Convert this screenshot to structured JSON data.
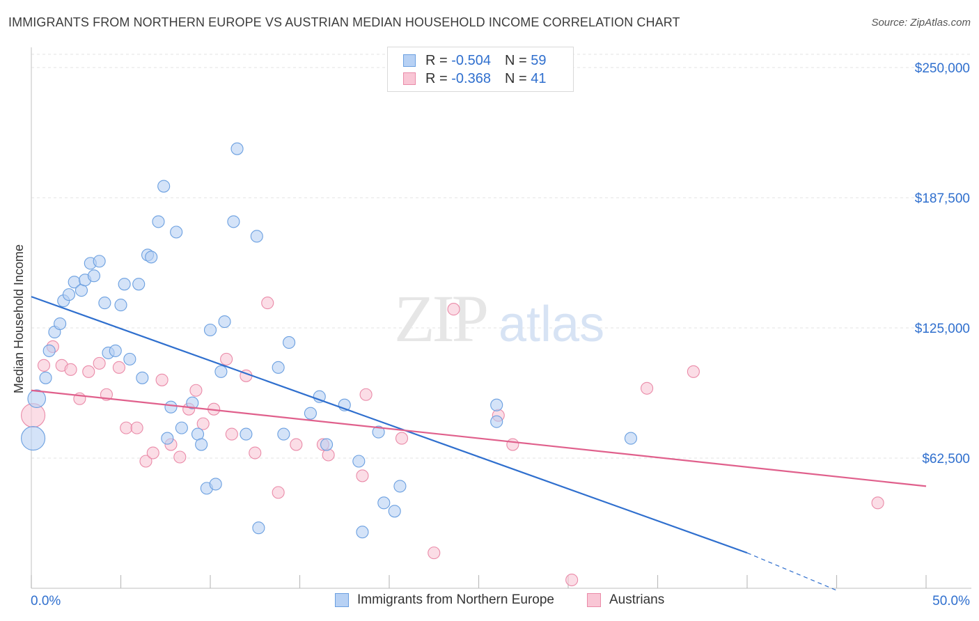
{
  "title": "IMMIGRANTS FROM NORTHERN EUROPE VS AUSTRIAN MEDIAN HOUSEHOLD INCOME CORRELATION CHART",
  "source": "Source: ZipAtlas.com",
  "watermark": {
    "zip": "ZIP",
    "atlas": "atlas"
  },
  "legend_top": [
    {
      "r_label": "R =",
      "r_value": "-0.504",
      "n_label": "N =",
      "n_value": "59",
      "fill": "#b7d1f4",
      "stroke": "#6a9fe0"
    },
    {
      "r_label": "R =",
      "r_value": "-0.368",
      "n_label": "N =",
      "n_value": "41",
      "fill": "#f9c6d5",
      "stroke": "#ea8aa8"
    }
  ],
  "legend_bottom": [
    {
      "label": "Immigrants from Northern Europe",
      "fill": "#b7d1f4",
      "stroke": "#6a9fe0"
    },
    {
      "label": "Austrians",
      "fill": "#f9c6d5",
      "stroke": "#ea8aa8"
    }
  ],
  "chart_data": {
    "type": "scatter",
    "title": "IMMIGRANTS FROM NORTHERN EUROPE VS AUSTRIAN MEDIAN HOUSEHOLD INCOME CORRELATION CHART",
    "xlabel": "",
    "ylabel": "Median Household Income",
    "xlim": [
      0,
      50
    ],
    "ylim": [
      0,
      250000
    ],
    "x_tick_labels": [
      "0.0%",
      "50.0%"
    ],
    "y_ticks": [
      62500,
      125000,
      187500,
      250000
    ],
    "y_tick_labels": [
      "$62,500",
      "$125,000",
      "$187,500",
      "$250,000"
    ],
    "grid": true,
    "legend_position": "top-center",
    "colors": {
      "blue": "#2f6fce",
      "pink": "#e0608c"
    },
    "series": [
      {
        "name": "Immigrants from Northern Europe",
        "color": "#6a9fe0",
        "fill": "#b7d1f4",
        "points": [
          [
            0.1,
            72000,
            2
          ],
          [
            0.3,
            91000,
            1.5
          ],
          [
            0.8,
            101000,
            1
          ],
          [
            1.0,
            114000,
            1
          ],
          [
            1.3,
            123000,
            1
          ],
          [
            1.6,
            127000,
            1
          ],
          [
            1.8,
            138000,
            1
          ],
          [
            2.1,
            141000,
            1
          ],
          [
            2.4,
            147000,
            1
          ],
          [
            2.8,
            143000,
            1
          ],
          [
            3.0,
            148000,
            1
          ],
          [
            3.3,
            156000,
            1
          ],
          [
            3.5,
            150000,
            1
          ],
          [
            3.8,
            157000,
            1
          ],
          [
            4.1,
            137000,
            1
          ],
          [
            4.3,
            113000,
            1
          ],
          [
            4.7,
            114000,
            1
          ],
          [
            5.0,
            136000,
            1
          ],
          [
            5.2,
            146000,
            1
          ],
          [
            5.5,
            110000,
            1
          ],
          [
            6.0,
            146000,
            1
          ],
          [
            6.2,
            101000,
            1
          ],
          [
            6.5,
            160000,
            1
          ],
          [
            6.7,
            159000,
            1
          ],
          [
            7.1,
            176000,
            1
          ],
          [
            7.4,
            193000,
            1
          ],
          [
            7.6,
            72000,
            1
          ],
          [
            7.8,
            87000,
            1
          ],
          [
            8.1,
            171000,
            1
          ],
          [
            8.4,
            77000,
            1
          ],
          [
            9.0,
            89000,
            1
          ],
          [
            9.3,
            74000,
            1
          ],
          [
            9.5,
            69000,
            1
          ],
          [
            9.8,
            48000,
            1
          ],
          [
            10.3,
            50000,
            1
          ],
          [
            10.0,
            124000,
            1
          ],
          [
            10.6,
            104000,
            1
          ],
          [
            10.8,
            128000,
            1
          ],
          [
            11.3,
            176000,
            1
          ],
          [
            11.5,
            211000,
            1
          ],
          [
            12.0,
            74000,
            1
          ],
          [
            12.6,
            169000,
            1
          ],
          [
            12.7,
            29000,
            1
          ],
          [
            13.8,
            106000,
            1
          ],
          [
            14.1,
            74000,
            1
          ],
          [
            14.4,
            118000,
            1
          ],
          [
            15.6,
            84000,
            1
          ],
          [
            16.1,
            92000,
            1
          ],
          [
            16.5,
            69000,
            1
          ],
          [
            17.5,
            88000,
            1
          ],
          [
            18.3,
            61000,
            1
          ],
          [
            18.5,
            27000,
            1
          ],
          [
            19.4,
            75000,
            1
          ],
          [
            19.7,
            41000,
            1
          ],
          [
            20.3,
            37000,
            1
          ],
          [
            20.6,
            49000,
            1
          ],
          [
            26.0,
            88000,
            1
          ],
          [
            26.0,
            80000,
            1
          ],
          [
            33.5,
            72000,
            1
          ]
        ]
      },
      {
        "name": "Austrians",
        "color": "#ea8aa8",
        "fill": "#f9c6d5",
        "points": [
          [
            0.1,
            83000,
            2
          ],
          [
            0.7,
            107000,
            1
          ],
          [
            1.2,
            116000,
            1
          ],
          [
            1.7,
            107000,
            1
          ],
          [
            2.2,
            105000,
            1
          ],
          [
            2.7,
            91000,
            1
          ],
          [
            3.2,
            104000,
            1
          ],
          [
            3.8,
            108000,
            1
          ],
          [
            4.2,
            93000,
            1
          ],
          [
            4.9,
            106000,
            1
          ],
          [
            5.3,
            77000,
            1
          ],
          [
            5.9,
            77000,
            1
          ],
          [
            6.4,
            61000,
            1
          ],
          [
            6.8,
            65000,
            1
          ],
          [
            7.3,
            100000,
            1
          ],
          [
            7.8,
            69000,
            1
          ],
          [
            8.3,
            63000,
            1
          ],
          [
            8.8,
            86000,
            1
          ],
          [
            9.2,
            95000,
            1
          ],
          [
            9.6,
            79000,
            1
          ],
          [
            10.2,
            86000,
            1
          ],
          [
            10.9,
            110000,
            1
          ],
          [
            11.2,
            74000,
            1
          ],
          [
            12.0,
            102000,
            1
          ],
          [
            12.5,
            65000,
            1
          ],
          [
            13.2,
            137000,
            1
          ],
          [
            13.8,
            46000,
            1
          ],
          [
            14.8,
            69000,
            1
          ],
          [
            16.3,
            69000,
            1
          ],
          [
            16.6,
            64000,
            1
          ],
          [
            18.5,
            54000,
            1
          ],
          [
            18.7,
            93000,
            1
          ],
          [
            20.7,
            72000,
            1
          ],
          [
            22.5,
            17000,
            1
          ],
          [
            23.6,
            134000,
            1
          ],
          [
            26.1,
            83000,
            1
          ],
          [
            26.9,
            69000,
            1
          ],
          [
            30.2,
            4000,
            1
          ],
          [
            34.4,
            96000,
            1
          ],
          [
            37.0,
            104000,
            1
          ],
          [
            47.3,
            41000,
            1
          ]
        ]
      }
    ],
    "trend_lines": [
      {
        "series": "Immigrants from Northern Europe",
        "color": "#2f6fce",
        "from": [
          0,
          140000
        ],
        "to": [
          40,
          17000
        ],
        "dashed_to": [
          45,
          -1000
        ]
      },
      {
        "series": "Austrians",
        "color": "#e0608c",
        "from": [
          0,
          95000
        ],
        "to": [
          50,
          49000
        ]
      }
    ]
  }
}
